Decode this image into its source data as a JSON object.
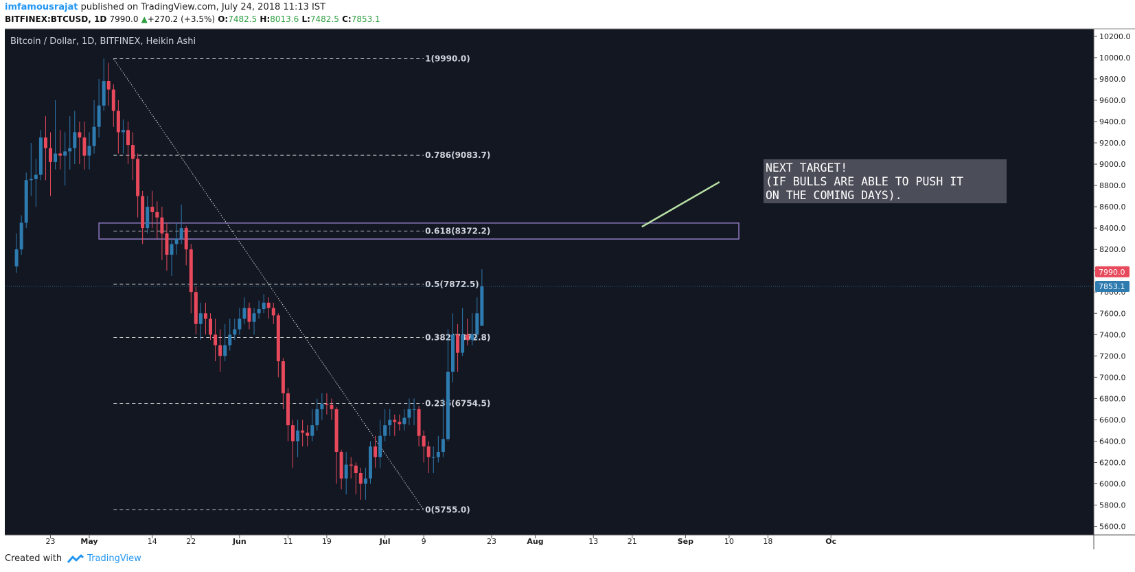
{
  "header": {
    "author": "imfamousrajat",
    "published_text": " published on TradingView.com, July 24, 2018 11:13 IST"
  },
  "quote": {
    "symbol": "BITFINEX:BTCUSD, 1D",
    "last": "7990.0",
    "change_arrow": "▲",
    "change": "+270.2 (+3.5%)",
    "open_label": "O:",
    "open": "7482.5",
    "high_label": "H:",
    "high": "8013.6",
    "low_label": "L:",
    "low": "7482.5",
    "close_label": "C:",
    "close": "7853.1"
  },
  "footer": {
    "created_with": "Created with",
    "brand": "TradingView"
  },
  "colors": {
    "background": "#131722",
    "up": "#2e7bb0",
    "down": "#e8495b",
    "text": "#ffffff",
    "axis_text": "#222222",
    "zone": "#8e7cc3",
    "arrow": "#b7e0a4",
    "price_line": "#2e7bb0"
  },
  "chart_data": {
    "type": "candlestick",
    "title": "Bitcoin / Dollar, 1D, BITFINEX, Heikin Ashi",
    "y_ticks": [
      10200,
      10000,
      9800,
      9600,
      9400,
      9200,
      9000,
      8800,
      8600,
      8400,
      8200,
      8000,
      7800,
      7600,
      7400,
      7200,
      7000,
      6800,
      6600,
      6400,
      6200,
      6000,
      5800,
      5600
    ],
    "ylim": [
      5520,
      10270
    ],
    "x_ticks": [
      "23",
      "May",
      "14",
      "22",
      "Jun",
      "11",
      "19",
      "Jul",
      "9",
      "23",
      "Aug",
      "13",
      "21",
      "Sep",
      "10",
      "18",
      "Oc"
    ],
    "x_tick_days": [
      -8,
      0,
      13,
      21,
      31,
      41,
      49,
      61,
      69,
      83,
      92,
      104,
      112,
      123,
      132,
      140,
      153
    ],
    "start_date": "2018-04-23",
    "fib_levels": [
      {
        "label": "1(9990.0)",
        "value": 9990.0
      },
      {
        "label": "0.786(9083.7)",
        "value": 9083.7
      },
      {
        "label": "0.618(8372.2)",
        "value": 8372.2
      },
      {
        "label": "0.5(7872.5)",
        "value": 7872.5
      },
      {
        "label": "0.382(7372.8)",
        "value": 7372.8
      },
      {
        "label": "0.236(6754.5)",
        "value": 6754.5
      },
      {
        "label": "0(5755.0)",
        "value": 5755.0
      }
    ],
    "price_labels": [
      {
        "text": "7990.0",
        "value": 7990.0,
        "color": "#e8495b"
      },
      {
        "text": "7853.1",
        "value": 7853.1,
        "color": "#2e7bb0"
      }
    ],
    "annotation": "NEXT TARGET!\n(IF BULLS ARE ABLE TO PUSH IT\nON THE COMING DAYS).",
    "candles": [
      {
        "o": 8040,
        "c": 8200,
        "h": 8350,
        "l": 7980
      },
      {
        "o": 8200,
        "c": 8450,
        "h": 8520,
        "l": 8150
      },
      {
        "o": 8450,
        "c": 8850,
        "h": 8920,
        "l": 8400
      },
      {
        "o": 8850,
        "c": 8860,
        "h": 9200,
        "l": 8700
      },
      {
        "o": 8860,
        "c": 8900,
        "h": 9050,
        "l": 8600
      },
      {
        "o": 8900,
        "c": 9250,
        "h": 9320,
        "l": 8850
      },
      {
        "o": 9250,
        "c": 9150,
        "h": 9450,
        "l": 8850
      },
      {
        "o": 9150,
        "c": 9020,
        "h": 9300,
        "l": 8700
      },
      {
        "o": 9020,
        "c": 9100,
        "h": 9600,
        "l": 8950
      },
      {
        "o": 9100,
        "c": 9080,
        "h": 9320,
        "l": 8950
      },
      {
        "o": 9080,
        "c": 9120,
        "h": 9300,
        "l": 8800
      },
      {
        "o": 9120,
        "c": 9150,
        "h": 9450,
        "l": 8950
      },
      {
        "o": 9150,
        "c": 9300,
        "h": 9500,
        "l": 9000
      },
      {
        "o": 9300,
        "c": 9250,
        "h": 9400,
        "l": 9000
      },
      {
        "o": 9250,
        "c": 9080,
        "h": 9400,
        "l": 8950
      },
      {
        "o": 9080,
        "c": 9170,
        "h": 9300,
        "l": 8950
      },
      {
        "o": 9170,
        "c": 9350,
        "h": 9600,
        "l": 9100
      },
      {
        "o": 9350,
        "c": 9550,
        "h": 9800,
        "l": 9250
      },
      {
        "o": 9550,
        "c": 9780,
        "h": 9990,
        "l": 9500
      },
      {
        "o": 9780,
        "c": 9700,
        "h": 9950,
        "l": 9550
      },
      {
        "o": 9700,
        "c": 9500,
        "h": 9750,
        "l": 9350
      },
      {
        "o": 9500,
        "c": 9300,
        "h": 9600,
        "l": 9100
      },
      {
        "o": 9300,
        "c": 9320,
        "h": 9420,
        "l": 9100
      },
      {
        "o": 9320,
        "c": 9180,
        "h": 9400,
        "l": 9000
      },
      {
        "o": 9180,
        "c": 9050,
        "h": 9300,
        "l": 8850
      },
      {
        "o": 9050,
        "c": 8700,
        "h": 9100,
        "l": 8500
      },
      {
        "o": 8700,
        "c": 8400,
        "h": 8750,
        "l": 8250
      },
      {
        "o": 8400,
        "c": 8600,
        "h": 8700,
        "l": 8350
      },
      {
        "o": 8600,
        "c": 8550,
        "h": 8750,
        "l": 8400
      },
      {
        "o": 8550,
        "c": 8500,
        "h": 8650,
        "l": 8300
      },
      {
        "o": 8500,
        "c": 8350,
        "h": 8600,
        "l": 8100
      },
      {
        "o": 8350,
        "c": 8150,
        "h": 8450,
        "l": 8000
      },
      {
        "o": 8150,
        "c": 8250,
        "h": 8300,
        "l": 7950
      },
      {
        "o": 8250,
        "c": 8300,
        "h": 8450,
        "l": 8150
      },
      {
        "o": 8300,
        "c": 8400,
        "h": 8620,
        "l": 8250
      },
      {
        "o": 8400,
        "c": 8200,
        "h": 8420,
        "l": 8050
      },
      {
        "o": 8200,
        "c": 7800,
        "h": 8250,
        "l": 7600
      },
      {
        "o": 7800,
        "c": 7500,
        "h": 7850,
        "l": 7400
      },
      {
        "o": 7500,
        "c": 7600,
        "h": 7700,
        "l": 7350
      },
      {
        "o": 7600,
        "c": 7550,
        "h": 7700,
        "l": 7400
      },
      {
        "o": 7550,
        "c": 7400,
        "h": 7600,
        "l": 7350
      },
      {
        "o": 7400,
        "c": 7300,
        "h": 7550,
        "l": 7150
      },
      {
        "o": 7300,
        "c": 7200,
        "h": 7450,
        "l": 7050
      },
      {
        "o": 7200,
        "c": 7300,
        "h": 7500,
        "l": 7150
      },
      {
        "o": 7300,
        "c": 7400,
        "h": 7550,
        "l": 7250
      },
      {
        "o": 7400,
        "c": 7450,
        "h": 7550,
        "l": 7350
      },
      {
        "o": 7450,
        "c": 7550,
        "h": 7650,
        "l": 7400
      },
      {
        "o": 7550,
        "c": 7650,
        "h": 7750,
        "l": 7500
      },
      {
        "o": 7650,
        "c": 7520,
        "h": 7700,
        "l": 7450
      },
      {
        "o": 7520,
        "c": 7600,
        "h": 7650,
        "l": 7400
      },
      {
        "o": 7600,
        "c": 7640,
        "h": 7720,
        "l": 7550
      },
      {
        "o": 7640,
        "c": 7700,
        "h": 7780,
        "l": 7600
      },
      {
        "o": 7700,
        "c": 7650,
        "h": 7750,
        "l": 7550
      },
      {
        "o": 7650,
        "c": 7580,
        "h": 7700,
        "l": 7500
      },
      {
        "o": 7580,
        "c": 7150,
        "h": 7600,
        "l": 7000
      },
      {
        "o": 7150,
        "c": 6850,
        "h": 7180,
        "l": 6700
      },
      {
        "o": 6850,
        "c": 6550,
        "h": 6900,
        "l": 6400
      },
      {
        "o": 6550,
        "c": 6400,
        "h": 6600,
        "l": 6150
      },
      {
        "o": 6400,
        "c": 6500,
        "h": 6600,
        "l": 6250
      },
      {
        "o": 6500,
        "c": 6480,
        "h": 6600,
        "l": 6350
      },
      {
        "o": 6480,
        "c": 6450,
        "h": 6550,
        "l": 6350
      },
      {
        "o": 6450,
        "c": 6550,
        "h": 6700,
        "l": 6400
      },
      {
        "o": 6550,
        "c": 6700,
        "h": 6800,
        "l": 6500
      },
      {
        "o": 6700,
        "c": 6750,
        "h": 6850,
        "l": 6600
      },
      {
        "o": 6750,
        "c": 6740,
        "h": 6850,
        "l": 6650
      },
      {
        "o": 6740,
        "c": 6700,
        "h": 6800,
        "l": 6600
      },
      {
        "o": 6700,
        "c": 6300,
        "h": 6720,
        "l": 6000
      },
      {
        "o": 6300,
        "c": 6050,
        "h": 6320,
        "l": 5950
      },
      {
        "o": 6050,
        "c": 6180,
        "h": 6300,
        "l": 5900
      },
      {
        "o": 6180,
        "c": 6170,
        "h": 6250,
        "l": 6050
      },
      {
        "o": 6170,
        "c": 6100,
        "h": 6200,
        "l": 5900
      },
      {
        "o": 6100,
        "c": 6000,
        "h": 6150,
        "l": 5850
      },
      {
        "o": 6000,
        "c": 6050,
        "h": 6150,
        "l": 5850
      },
      {
        "o": 6050,
        "c": 6350,
        "h": 6400,
        "l": 6000
      },
      {
        "o": 6350,
        "c": 6250,
        "h": 6450,
        "l": 6150
      },
      {
        "o": 6250,
        "c": 6450,
        "h": 6600,
        "l": 6150
      },
      {
        "o": 6450,
        "c": 6550,
        "h": 6700,
        "l": 6400
      },
      {
        "o": 6550,
        "c": 6600,
        "h": 6700,
        "l": 6450
      },
      {
        "o": 6600,
        "c": 6580,
        "h": 6650,
        "l": 6450
      },
      {
        "o": 6580,
        "c": 6560,
        "h": 6650,
        "l": 6500
      },
      {
        "o": 6560,
        "c": 6620,
        "h": 6700,
        "l": 6500
      },
      {
        "o": 6620,
        "c": 6700,
        "h": 6800,
        "l": 6550
      },
      {
        "o": 6700,
        "c": 6700,
        "h": 6800,
        "l": 6550
      },
      {
        "o": 6700,
        "c": 6450,
        "h": 6730,
        "l": 6350
      },
      {
        "o": 6450,
        "c": 6350,
        "h": 6500,
        "l": 6200
      },
      {
        "o": 6350,
        "c": 6250,
        "h": 6400,
        "l": 6100
      },
      {
        "o": 6250,
        "c": 6250,
        "h": 6350,
        "l": 6100
      },
      {
        "o": 6250,
        "c": 6300,
        "h": 6450,
        "l": 6200
      },
      {
        "o": 6300,
        "c": 6420,
        "h": 6800,
        "l": 6250
      },
      {
        "o": 6420,
        "c": 7050,
        "h": 7450,
        "l": 6400
      },
      {
        "o": 7050,
        "c": 7400,
        "h": 7600,
        "l": 6950
      },
      {
        "o": 7400,
        "c": 7230,
        "h": 7500,
        "l": 7050
      },
      {
        "o": 7230,
        "c": 7400,
        "h": 7650,
        "l": 7200
      },
      {
        "o": 7400,
        "c": 7350,
        "h": 7550,
        "l": 7300
      },
      {
        "o": 7350,
        "c": 7400,
        "h": 7600,
        "l": 7300
      },
      {
        "o": 7400,
        "c": 7600,
        "h": 7750,
        "l": 7350
      },
      {
        "o": 7482.5,
        "c": 7853.1,
        "h": 8013.6,
        "l": 7482.5
      }
    ]
  }
}
